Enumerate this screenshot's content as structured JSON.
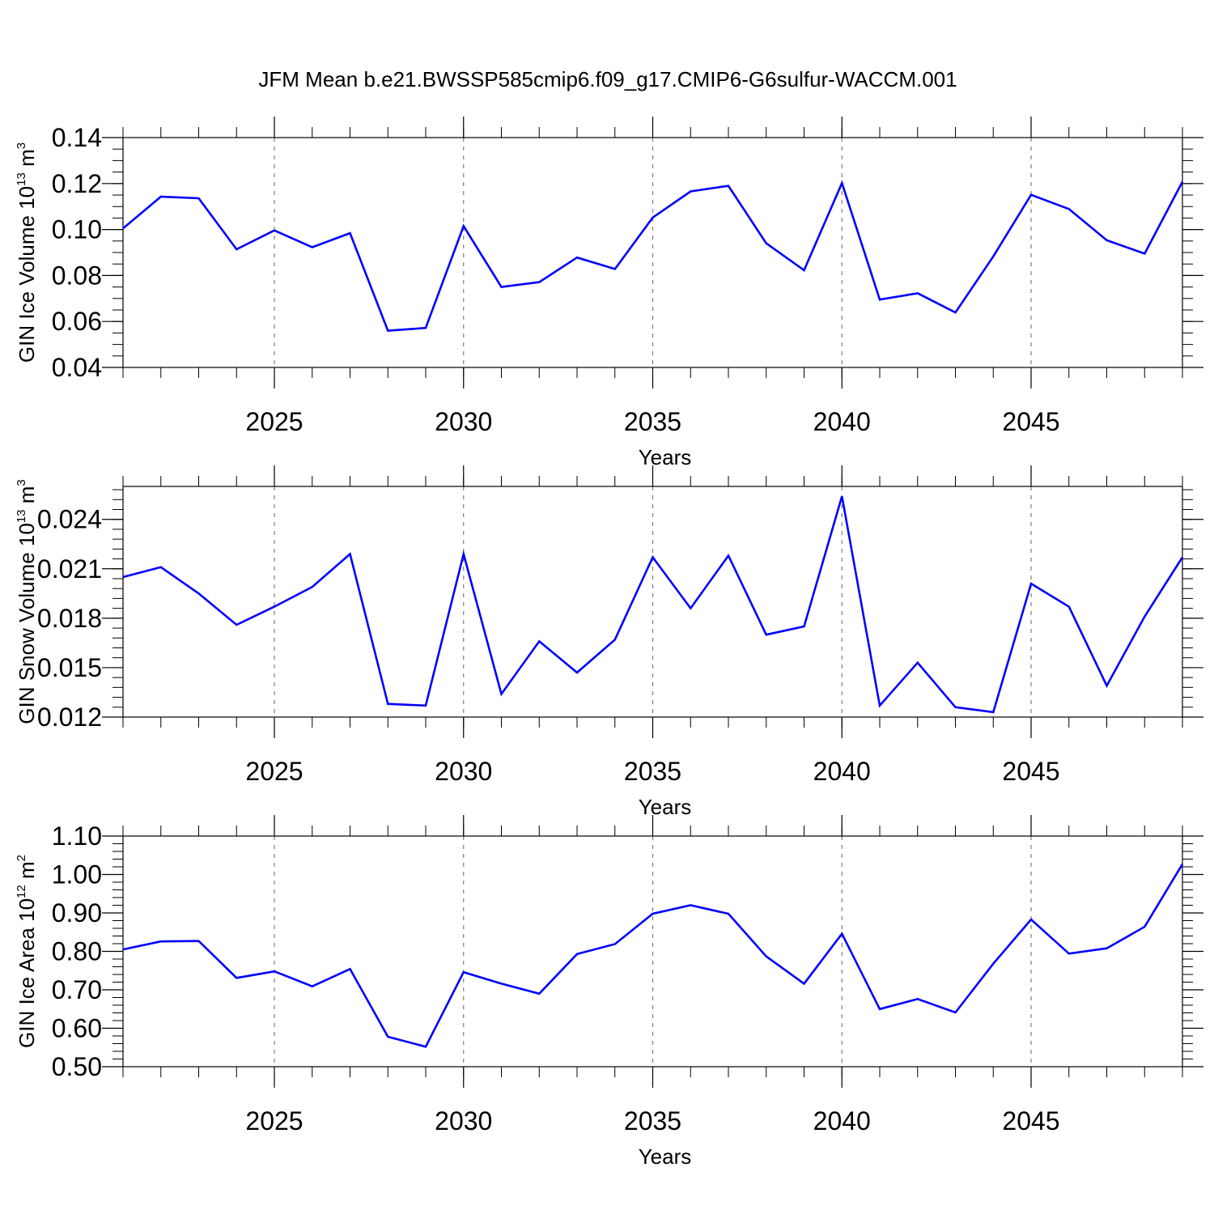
{
  "title": "JFM Mean b.e21.BWSSP585cmip6.f09_g17.CMIP6-G6sulfur-WACCM.001",
  "colors": {
    "line": "#0000ff",
    "axis": "#000000",
    "grid": "#7f7f7f"
  },
  "chart_data": [
    {
      "type": "line",
      "ylabel": {
        "main": "GIN Ice Volume 10",
        "exp": "13",
        "unit": " m",
        "unit_exp": "3"
      },
      "xlabel": "Years",
      "xlim": [
        2021,
        2049
      ],
      "ylim": [
        0.04,
        0.14
      ],
      "yticks": [
        0.04,
        0.06,
        0.08,
        0.1,
        0.12,
        0.14
      ],
      "ytick_labels": [
        "0.04",
        "0.06",
        "0.08",
        "0.10",
        "0.12",
        "0.14"
      ],
      "yminor_step": 0.005,
      "xticks": [
        2025,
        2030,
        2035,
        2040,
        2045
      ],
      "xtick_labels": [
        "2025",
        "2030",
        "2035",
        "2040",
        "2045"
      ],
      "grid_x": [
        2025,
        2030,
        2035,
        2040,
        2045
      ],
      "x": [
        2021,
        2022,
        2023,
        2024,
        2025,
        2026,
        2027,
        2028,
        2029,
        2030,
        2031,
        2032,
        2033,
        2034,
        2035,
        2036,
        2037,
        2038,
        2039,
        2040,
        2041,
        2042,
        2043,
        2044,
        2045,
        2046,
        2047,
        2048,
        2049
      ],
      "values": [
        0.1005,
        0.1143,
        0.1136,
        0.0914,
        0.0996,
        0.0923,
        0.0984,
        0.056,
        0.0572,
        0.1015,
        0.075,
        0.0771,
        0.0878,
        0.0828,
        0.1052,
        0.1166,
        0.119,
        0.094,
        0.0823,
        0.1202,
        0.0695,
        0.0723,
        0.0639,
        0.0883,
        0.1151,
        0.1089,
        0.0953,
        0.0895,
        0.1208
      ]
    },
    {
      "type": "line",
      "ylabel": {
        "main": "GIN Snow Volume 10",
        "exp": "13",
        "unit": " m",
        "unit_exp": "3"
      },
      "xlabel": "Years",
      "xlim": [
        2021,
        2049
      ],
      "ylim": [
        0.012,
        0.026
      ],
      "yticks": [
        0.012,
        0.015,
        0.018,
        0.021,
        0.024
      ],
      "ytick_labels": [
        "0.012",
        "0.015",
        "0.018",
        "0.021",
        "0.024"
      ],
      "yminor_step": 0.0006,
      "xticks": [
        2025,
        2030,
        2035,
        2040,
        2045
      ],
      "xtick_labels": [
        "2025",
        "2030",
        "2035",
        "2040",
        "2045"
      ],
      "grid_x": [
        2025,
        2030,
        2035,
        2040,
        2045
      ],
      "x": [
        2021,
        2022,
        2023,
        2024,
        2025,
        2026,
        2027,
        2028,
        2029,
        2030,
        2031,
        2032,
        2033,
        2034,
        2035,
        2036,
        2037,
        2038,
        2039,
        2040,
        2041,
        2042,
        2043,
        2044,
        2045,
        2046,
        2047,
        2048,
        2049
      ],
      "values": [
        0.0205,
        0.0211,
        0.0195,
        0.0176,
        0.0187,
        0.0199,
        0.0219,
        0.0128,
        0.0127,
        0.0219,
        0.0134,
        0.0166,
        0.0147,
        0.0167,
        0.0217,
        0.0186,
        0.0218,
        0.017,
        0.0175,
        0.0254,
        0.0127,
        0.0153,
        0.0126,
        0.0123,
        0.0201,
        0.0187,
        0.0139,
        0.0181,
        0.0217
      ]
    },
    {
      "type": "line",
      "ylabel": {
        "main": "GIN Ice Area 10",
        "exp": "12",
        "unit": " m",
        "unit_exp": "2"
      },
      "xlabel": "Years",
      "xlim": [
        2021,
        2049
      ],
      "ylim": [
        0.5,
        1.1
      ],
      "yticks": [
        0.5,
        0.6,
        0.7,
        0.8,
        0.9,
        1.0,
        1.1
      ],
      "ytick_labels": [
        "0.50",
        "0.60",
        "0.70",
        "0.80",
        "0.90",
        "1.00",
        "1.10"
      ],
      "yminor_step": 0.02,
      "xticks": [
        2025,
        2030,
        2035,
        2040,
        2045
      ],
      "xtick_labels": [
        "2025",
        "2030",
        "2035",
        "2040",
        "2045"
      ],
      "grid_x": [
        2025,
        2030,
        2035,
        2040,
        2045
      ],
      "x": [
        2021,
        2022,
        2023,
        2024,
        2025,
        2026,
        2027,
        2028,
        2029,
        2030,
        2031,
        2032,
        2033,
        2034,
        2035,
        2036,
        2037,
        2038,
        2039,
        2040,
        2041,
        2042,
        2043,
        2044,
        2045,
        2046,
        2047,
        2048,
        2049
      ],
      "values": [
        0.805,
        0.826,
        0.827,
        0.731,
        0.748,
        0.709,
        0.754,
        0.578,
        0.552,
        0.746,
        0.716,
        0.69,
        0.793,
        0.819,
        0.898,
        0.92,
        0.898,
        0.787,
        0.716,
        0.846,
        0.65,
        0.676,
        0.641,
        0.768,
        0.883,
        0.794,
        0.808,
        0.864,
        1.027
      ]
    }
  ]
}
